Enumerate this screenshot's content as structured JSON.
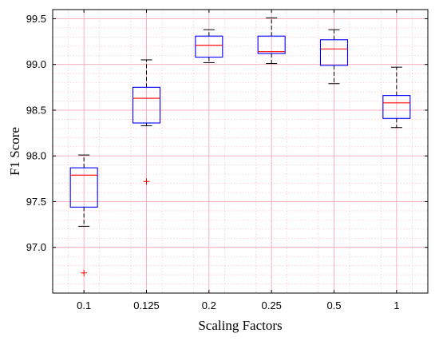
{
  "chart_data": {
    "type": "boxplot",
    "title": "",
    "xlabel": "Scaling Factors",
    "ylabel": "F1 Score",
    "ylim": [
      96.5,
      99.6
    ],
    "yticks": [
      "97.0",
      "97.5",
      "98.0",
      "98.5",
      "99.0",
      "99.5"
    ],
    "categories": [
      "0.1",
      "0.125",
      "0.2",
      "0.25",
      "0.5",
      "1"
    ],
    "grid": true,
    "minor_grid": true,
    "colors": {
      "box": "#0000ff",
      "median": "#ff0000",
      "whisker": "#000000",
      "outlier": "#ff0000",
      "grid": "#f4a9b8",
      "axes": "#000000"
    },
    "boxes": [
      {
        "category": "0.1",
        "whisker_low": 97.23,
        "q1": 97.44,
        "median": 97.79,
        "q3": 97.87,
        "whisker_high": 98.01,
        "outliers": [
          96.72
        ]
      },
      {
        "category": "0.125",
        "whisker_low": 98.33,
        "q1": 98.36,
        "median": 98.63,
        "q3": 98.75,
        "whisker_high": 99.05,
        "outliers": [
          97.72
        ]
      },
      {
        "category": "0.2",
        "whisker_low": 99.02,
        "q1": 99.08,
        "median": 99.21,
        "q3": 99.31,
        "whisker_high": 99.38,
        "outliers": []
      },
      {
        "category": "0.25",
        "whisker_low": 99.01,
        "q1": 99.12,
        "median": 99.14,
        "q3": 99.31,
        "whisker_high": 99.51,
        "outliers": []
      },
      {
        "category": "0.5",
        "whisker_low": 98.79,
        "q1": 98.99,
        "median": 99.17,
        "q3": 99.27,
        "whisker_high": 99.38,
        "outliers": []
      },
      {
        "category": "1",
        "whisker_low": 98.31,
        "q1": 98.41,
        "median": 98.58,
        "q3": 98.66,
        "whisker_high": 98.97,
        "outliers": []
      }
    ]
  }
}
